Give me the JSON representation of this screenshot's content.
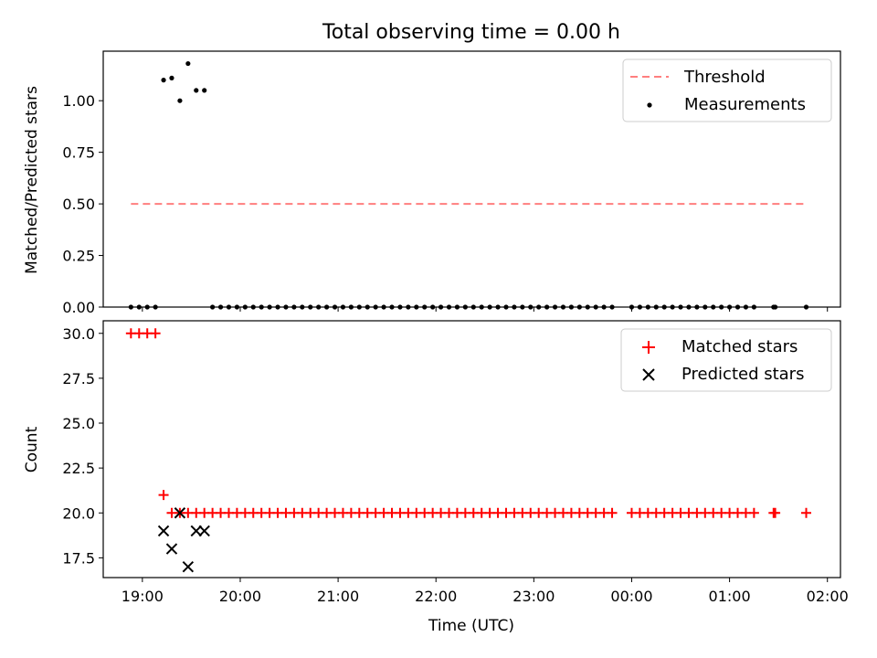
{
  "chart_data": [
    {
      "type": "scatter",
      "title": "Total observing time = 0.00 h",
      "xlabel": "",
      "ylabel": "Matched/Predicted stars",
      "xlim": [
        "18:36",
        "02:08"
      ],
      "ylim": [
        0,
        1.24
      ],
      "yticks": [
        "0.00",
        "0.25",
        "0.50",
        "0.75",
        "1.00"
      ],
      "xticks": [
        "19:00",
        "20:00",
        "21:00",
        "22:00",
        "23:00",
        "00:00",
        "01:00",
        "02:00"
      ],
      "legend_position": "top-right",
      "series": [
        {
          "name": "Threshold",
          "style": "dashed-line",
          "color": "#ff7f7f",
          "x": [
            "18:53",
            "01:48"
          ],
          "y": [
            0.5,
            0.5
          ]
        },
        {
          "name": "Measurements",
          "style": "dot",
          "color": "#000000",
          "x": [
            "18:53",
            "18:58",
            "19:03",
            "19:08",
            "19:13",
            "19:18",
            "19:23",
            "19:28",
            "19:33",
            "19:38",
            "19:43",
            "19:48",
            "19:53",
            "19:58",
            "20:03",
            "20:08",
            "20:13",
            "20:18",
            "20:23",
            "20:28",
            "20:33",
            "20:38",
            "20:43",
            "20:48",
            "20:53",
            "20:58",
            "21:03",
            "21:08",
            "21:13",
            "21:18",
            "21:23",
            "21:28",
            "21:33",
            "21:38",
            "21:43",
            "21:48",
            "21:53",
            "21:58",
            "22:03",
            "22:08",
            "22:13",
            "22:18",
            "22:23",
            "22:28",
            "22:33",
            "22:38",
            "22:43",
            "22:48",
            "22:53",
            "22:58",
            "23:03",
            "23:08",
            "23:13",
            "23:18",
            "23:23",
            "23:28",
            "23:33",
            "23:38",
            "23:43",
            "23:48",
            "00:00",
            "00:05",
            "00:10",
            "00:15",
            "00:20",
            "00:25",
            "00:30",
            "00:35",
            "00:40",
            "00:45",
            "00:50",
            "00:55",
            "01:00",
            "01:05",
            "01:10",
            "01:15",
            "01:27",
            "01:28",
            "01:47"
          ],
          "y": [
            0,
            0,
            0,
            0,
            1.1,
            1.11,
            1.0,
            1.18,
            1.05,
            1.05,
            0,
            0,
            0,
            0,
            0,
            0,
            0,
            0,
            0,
            0,
            0,
            0,
            0,
            0,
            0,
            0,
            0,
            0,
            0,
            0,
            0,
            0,
            0,
            0,
            0,
            0,
            0,
            0,
            0,
            0,
            0,
            0,
            0,
            0,
            0,
            0,
            0,
            0,
            0,
            0,
            0,
            0,
            0,
            0,
            0,
            0,
            0,
            0,
            0,
            0,
            0,
            0,
            0,
            0,
            0,
            0,
            0,
            0,
            0,
            0,
            0,
            0,
            0,
            0,
            0,
            0,
            0,
            0,
            0
          ]
        }
      ]
    },
    {
      "type": "scatter",
      "title": "",
      "xlabel": "Time (UTC)",
      "ylabel": "Count",
      "xlim": [
        "18:36",
        "02:08"
      ],
      "ylim": [
        16.4,
        30.7
      ],
      "yticks": [
        "17.5",
        "20.0",
        "22.5",
        "25.0",
        "27.5",
        "30.0"
      ],
      "xticks": [
        "19:00",
        "20:00",
        "21:00",
        "22:00",
        "23:00",
        "00:00",
        "01:00",
        "02:00"
      ],
      "legend_position": "top-right",
      "series": [
        {
          "name": "Matched stars",
          "style": "plus",
          "color": "#ff0000",
          "x": [
            "18:53",
            "18:58",
            "19:03",
            "19:08",
            "19:13",
            "19:18",
            "19:23",
            "19:28",
            "19:33",
            "19:38",
            "19:43",
            "19:48",
            "19:53",
            "19:58",
            "20:03",
            "20:08",
            "20:13",
            "20:18",
            "20:23",
            "20:28",
            "20:33",
            "20:38",
            "20:43",
            "20:48",
            "20:53",
            "20:58",
            "21:03",
            "21:08",
            "21:13",
            "21:18",
            "21:23",
            "21:28",
            "21:33",
            "21:38",
            "21:43",
            "21:48",
            "21:53",
            "21:58",
            "22:03",
            "22:08",
            "22:13",
            "22:18",
            "22:23",
            "22:28",
            "22:33",
            "22:38",
            "22:43",
            "22:48",
            "22:53",
            "22:58",
            "23:03",
            "23:08",
            "23:13",
            "23:18",
            "23:23",
            "23:28",
            "23:33",
            "23:38",
            "23:43",
            "23:48",
            "00:00",
            "00:05",
            "00:10",
            "00:15",
            "00:20",
            "00:25",
            "00:30",
            "00:35",
            "00:40",
            "00:45",
            "00:50",
            "00:55",
            "01:00",
            "01:05",
            "01:10",
            "01:15",
            "01:27",
            "01:28",
            "01:47"
          ],
          "y": [
            30,
            30,
            30,
            30,
            21,
            20,
            20,
            20,
            20,
            20,
            20,
            20,
            20,
            20,
            20,
            20,
            20,
            20,
            20,
            20,
            20,
            20,
            20,
            20,
            20,
            20,
            20,
            20,
            20,
            20,
            20,
            20,
            20,
            20,
            20,
            20,
            20,
            20,
            20,
            20,
            20,
            20,
            20,
            20,
            20,
            20,
            20,
            20,
            20,
            20,
            20,
            20,
            20,
            20,
            20,
            20,
            20,
            20,
            20,
            20,
            20,
            20,
            20,
            20,
            20,
            20,
            20,
            20,
            20,
            20,
            20,
            20,
            20,
            20,
            20,
            20,
            20,
            20,
            20
          ]
        },
        {
          "name": "Predicted stars",
          "style": "x",
          "color": "#000000",
          "x": [
            "19:13",
            "19:18",
            "19:23",
            "19:28",
            "19:33",
            "19:38"
          ],
          "y": [
            19,
            18,
            20,
            17,
            19,
            19
          ]
        }
      ]
    }
  ]
}
